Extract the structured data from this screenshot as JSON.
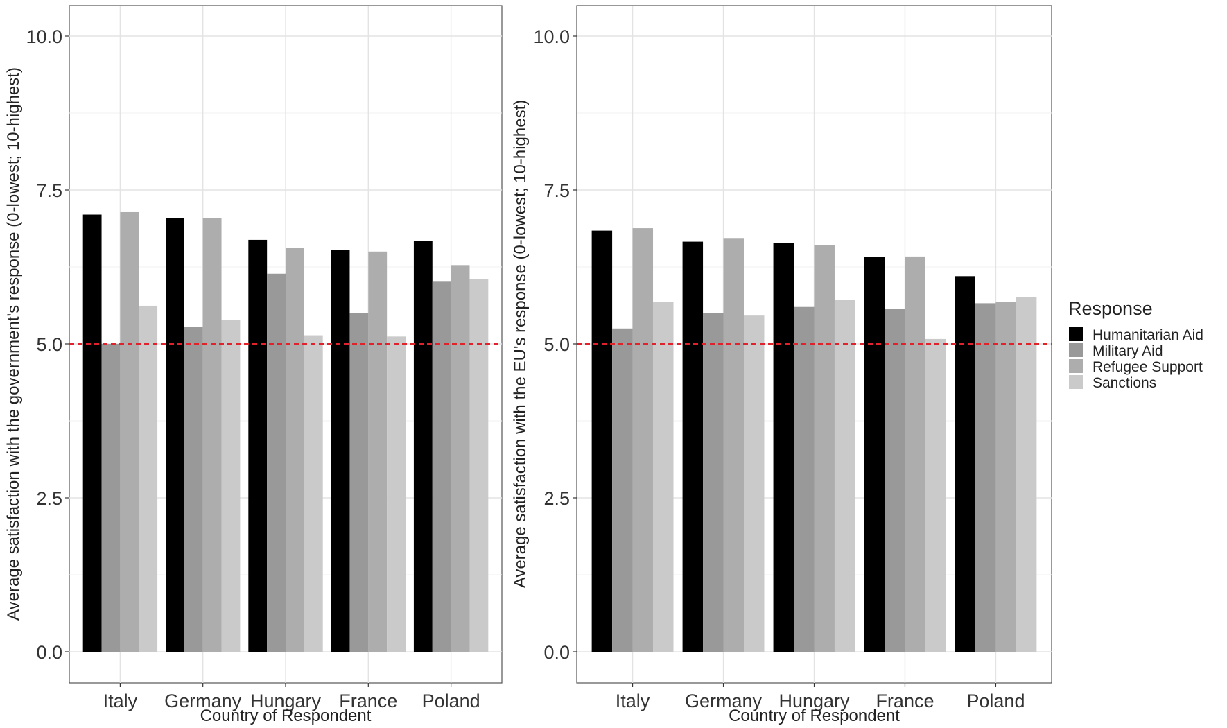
{
  "legend": {
    "title": "Response",
    "entries": [
      {
        "label": "Humanitarian Aid",
        "color": "#000000"
      },
      {
        "label": "Military Aid",
        "color": "#999999"
      },
      {
        "label": "Refugee Support",
        "color": "#adadad"
      },
      {
        "label": "Sanctions",
        "color": "#cacaca"
      }
    ]
  },
  "reference_line": {
    "y": 5.0,
    "color": "#e0232a",
    "style": "dashed"
  },
  "chart_data": [
    {
      "type": "bar",
      "title": "",
      "xlabel": "Country of Respondent",
      "ylabel": "Average satisfaction with the government's response (0-lowest; 10-highest)",
      "ylim": [
        0,
        10.5
      ],
      "yticks": [
        "0.0",
        "2.5",
        "5.0",
        "7.5",
        "10.0"
      ],
      "grid": true,
      "legend_position": "right",
      "categories": [
        "Italy",
        "Germany",
        "Hungary",
        "France",
        "Poland"
      ],
      "series": [
        {
          "name": "Humanitarian Aid",
          "values": [
            7.1,
            7.04,
            6.69,
            6.53,
            6.67
          ]
        },
        {
          "name": "Military Aid",
          "values": [
            5.0,
            5.28,
            6.14,
            5.5,
            6.01
          ]
        },
        {
          "name": "Refugee Support",
          "values": [
            7.14,
            7.04,
            6.56,
            6.5,
            6.28
          ]
        },
        {
          "name": "Sanctions",
          "values": [
            5.62,
            5.39,
            5.14,
            5.12,
            6.05
          ]
        }
      ]
    },
    {
      "type": "bar",
      "title": "",
      "xlabel": "Country of Respondent",
      "ylabel": "Average satisfaction with the EU's response (0-lowest; 10-highest)",
      "ylim": [
        0,
        10.5
      ],
      "yticks": [
        "0.0",
        "2.5",
        "5.0",
        "7.5",
        "10.0"
      ],
      "grid": true,
      "legend_position": "right",
      "categories": [
        "Italy",
        "Germany",
        "Hungary",
        "France",
        "Poland"
      ],
      "series": [
        {
          "name": "Humanitarian Aid",
          "values": [
            6.84,
            6.66,
            6.64,
            6.41,
            6.1
          ]
        },
        {
          "name": "Military Aid",
          "values": [
            5.25,
            5.5,
            5.6,
            5.57,
            5.66
          ]
        },
        {
          "name": "Refugee Support",
          "values": [
            6.88,
            6.72,
            6.6,
            6.42,
            5.68
          ]
        },
        {
          "name": "Sanctions",
          "values": [
            5.68,
            5.46,
            5.72,
            5.08,
            5.76
          ]
        }
      ]
    }
  ]
}
